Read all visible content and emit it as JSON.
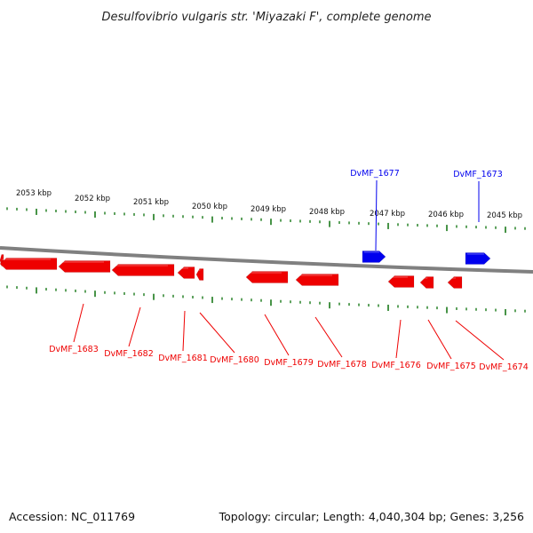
{
  "title": "Desulfovibrio vulgaris str. 'Miyazaki F', complete genome",
  "footer": {
    "accession": "Accession: NC_011769",
    "stats": "Topology: circular; Length: 4,040,304 bp; Genes: 3,256"
  },
  "colors": {
    "forward": "#0000ee",
    "reverse": "#ee0000",
    "ticks": "#1a7a1a",
    "backbone": "#808080"
  },
  "scale_labels": [
    "2053 kbp",
    "2052 kbp",
    "2051 kbp",
    "2050 kbp",
    "2049 kbp",
    "2048 kbp",
    "2047 kbp",
    "2046 kbp",
    "2045 kbp"
  ],
  "forward_genes": [
    "DvMF_1677",
    "DvMF_1673"
  ],
  "reverse_genes": [
    "DvMF_1683",
    "DvMF_1682",
    "DvMF_1681",
    "DvMF_1680",
    "DvMF_1679",
    "DvMF_1678",
    "DvMF_1676",
    "DvMF_1675",
    "DvMF_1674"
  ]
}
